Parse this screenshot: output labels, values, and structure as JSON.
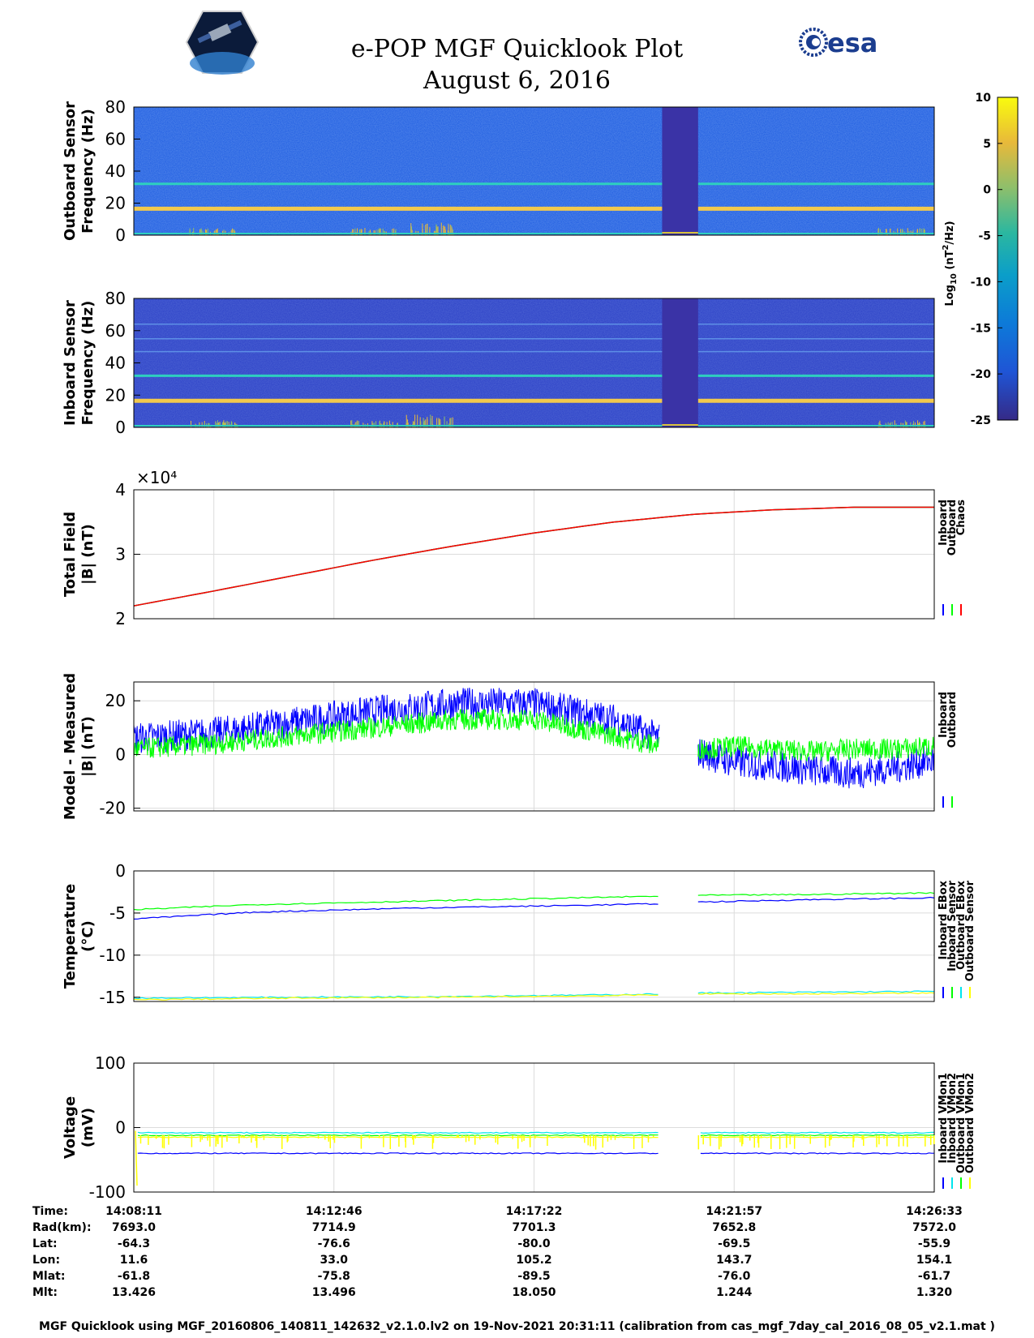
{
  "header": {
    "title_line1": "e-POP MGF Quicklook Plot",
    "title_line2": "August 6, 2016",
    "left_logo": "satellite-mission-logo",
    "right_logo_text": "esa"
  },
  "colorbar": {
    "label": "Log10 (nT2/Hz)",
    "ticks": [
      10,
      5,
      0,
      -5,
      -10,
      -15,
      -20,
      -25
    ],
    "range": [
      -25,
      10
    ]
  },
  "colors": {
    "inboard": "#0000ff",
    "outboard": "#00ff00",
    "chaos": "#ff0000",
    "cyan": "#00e5ee",
    "yellow": "#ffff00"
  },
  "chart_data": [
    {
      "type": "heatmap",
      "id": "outboard-spectrogram",
      "ylabel_line1": "Outboard Sensor",
      "ylabel_line2": "Frequency (Hz)",
      "yticks": [
        "80",
        "60",
        "40",
        "20",
        "0"
      ],
      "ylim": [
        0,
        80
      ],
      "lines_hz": [
        16.5,
        32
      ],
      "gap": [
        0.66,
        0.705
      ]
    },
    {
      "type": "heatmap",
      "id": "inboard-spectrogram",
      "ylabel_line1": "Inboard Sensor",
      "ylabel_line2": "Frequency (Hz)",
      "yticks": [
        "80",
        "60",
        "40",
        "20",
        "0"
      ],
      "ylim": [
        0,
        80
      ],
      "lines_hz": [
        16.5,
        32,
        47,
        55,
        64
      ],
      "gap": [
        0.66,
        0.705
      ]
    },
    {
      "type": "line",
      "id": "total-field",
      "ylabel_line1": "Total Field",
      "ylabel_line2": "|B| (nT)",
      "exponent": "×10⁴",
      "yticks": [
        "4",
        "3",
        "2"
      ],
      "ylim": [
        2,
        4
      ],
      "series": [
        {
          "name": "Inboard",
          "color": "#0000ff",
          "x": [
            0,
            0.1,
            0.2,
            0.3,
            0.4,
            0.5,
            0.6,
            0.7,
            0.8,
            0.9,
            1.0
          ],
          "values": [
            2.2,
            2.43,
            2.67,
            2.91,
            3.13,
            3.33,
            3.5,
            3.62,
            3.69,
            3.73,
            3.73
          ]
        },
        {
          "name": "Outboard",
          "color": "#00ff00",
          "x": [
            0,
            0.1,
            0.2,
            0.3,
            0.4,
            0.5,
            0.6,
            0.7,
            0.8,
            0.9,
            1.0
          ],
          "values": [
            2.2,
            2.43,
            2.67,
            2.91,
            3.13,
            3.33,
            3.5,
            3.62,
            3.69,
            3.73,
            3.73
          ]
        },
        {
          "name": "Chaos",
          "color": "#ff0000",
          "x": [
            0,
            0.1,
            0.2,
            0.3,
            0.4,
            0.5,
            0.6,
            0.7,
            0.8,
            0.9,
            1.0
          ],
          "values": [
            2.2,
            2.43,
            2.67,
            2.91,
            3.13,
            3.33,
            3.5,
            3.62,
            3.69,
            3.73,
            3.73
          ]
        }
      ],
      "legend": [
        "Inboard",
        "Outboard",
        "Chaos"
      ]
    },
    {
      "type": "line",
      "id": "model-minus-measured",
      "ylabel_line1": "Model - Measured",
      "ylabel_line2": "|B| (nT)",
      "yticks": [
        "20",
        "0",
        "-20"
      ],
      "ylim": [
        -21,
        27
      ],
      "series": [
        {
          "name": "Inboard",
          "color": "#0000ff",
          "x": [
            0,
            0.1,
            0.2,
            0.3,
            0.4,
            0.5,
            0.6,
            0.657,
            0.705,
            0.75,
            0.8,
            0.85,
            0.9,
            0.95,
            1.0
          ],
          "values": [
            6,
            8,
            12,
            16,
            19,
            19,
            13,
            6,
            1,
            -3,
            -4,
            -6,
            -7,
            -5,
            -2
          ],
          "amp": 6
        },
        {
          "name": "Outboard",
          "color": "#00ff00",
          "x": [
            0,
            0.1,
            0.2,
            0.3,
            0.4,
            0.5,
            0.6,
            0.657,
            0.705,
            0.75,
            0.8,
            0.85,
            0.9,
            0.95,
            1.0
          ],
          "values": [
            2,
            4,
            7,
            10,
            13,
            13,
            7,
            3,
            2,
            3,
            2,
            1,
            2,
            2,
            3
          ],
          "amp": 4
        }
      ],
      "gap": [
        0.657,
        0.705
      ],
      "legend": [
        "Inboard",
        "Outboard"
      ]
    },
    {
      "type": "line",
      "id": "temperature",
      "ylabel_line1": "Temperature",
      "ylabel_line2": "(°C)",
      "yticks": [
        "0",
        "-5",
        "-10",
        "-15"
      ],
      "ylim": [
        -15.5,
        0
      ],
      "series": [
        {
          "name": "Inboard EBox",
          "color": "#0000ff",
          "x": [
            0,
            0.15,
            0.35,
            0.55,
            0.657,
            0.705,
            0.85,
            1.0
          ],
          "values": [
            -5.7,
            -4.9,
            -4.4,
            -4.1,
            -3.9,
            -3.7,
            -3.4,
            -3.2
          ]
        },
        {
          "name": "Inboard Sensor",
          "color": "#00ff00",
          "x": [
            0,
            0.15,
            0.35,
            0.55,
            0.657,
            0.705,
            0.85,
            1.0
          ],
          "values": [
            -4.6,
            -4.0,
            -3.6,
            -3.2,
            -3.0,
            -2.9,
            -2.8,
            -2.6
          ]
        },
        {
          "name": "Outboard EBox",
          "color": "#00e5ee",
          "x": [
            0,
            0.2,
            0.4,
            0.6,
            0.657,
            0.705,
            0.85,
            1.0
          ],
          "values": [
            -15.1,
            -15.0,
            -14.9,
            -14.7,
            -14.6,
            -14.5,
            -14.4,
            -14.3
          ]
        },
        {
          "name": "Outboard Sensor",
          "color": "#ffff00",
          "x": [
            0,
            0.2,
            0.4,
            0.6,
            0.657,
            0.705,
            0.85,
            1.0
          ],
          "values": [
            -15.3,
            -15.1,
            -15.0,
            -14.8,
            -14.7,
            -14.6,
            -14.6,
            -14.5
          ]
        }
      ],
      "gap": [
        0.657,
        0.705
      ],
      "legend": [
        "Inboard EBox",
        "Inboard Sensor",
        "Outboard EBox",
        "Outboard Sensor"
      ]
    },
    {
      "type": "line",
      "id": "voltage",
      "ylabel_line1": "Voltage",
      "ylabel_line2": "(mV)",
      "yticks": [
        "100",
        "0",
        "-100"
      ],
      "ylim": [
        -100,
        100
      ],
      "series": [
        {
          "name": "Inboard VMon1",
          "color": "#0000ff",
          "x": [
            0.005,
            0.657,
            0.705,
            1.0
          ],
          "values": [
            -40,
            -40,
            -40,
            -40
          ]
        },
        {
          "name": "Inboard VMon2",
          "color": "#00e5ee",
          "x": [
            0.005,
            0.657,
            0.705,
            1.0
          ],
          "values": [
            -8,
            -8,
            -8,
            -8
          ]
        },
        {
          "name": "Outboard VMon1",
          "color": "#00ff00",
          "x": [
            0.005,
            0.657,
            0.705,
            1.0
          ],
          "values": [
            -12,
            -12,
            -12,
            -12
          ]
        },
        {
          "name": "Outboard VMon2",
          "color": "#ffff00",
          "x": [
            0.005,
            0.657,
            0.705,
            1.0
          ],
          "values": [
            -15,
            -15,
            -15,
            -15
          ]
        }
      ],
      "gap": [
        0.657,
        0.705
      ],
      "legend": [
        "Inboard VMon1",
        "Inboard VMon2",
        "Outboard VMon1",
        "Outboard VMon2"
      ]
    }
  ],
  "ephemeris": {
    "row_labels": [
      "Time:",
      "Rad(km):",
      "Lat:",
      "Lon:",
      "Mlat:",
      "Mlt:"
    ],
    "columns": [
      {
        "x_fraction": 0.0,
        "values": [
          "14:08:11",
          "7693.0",
          "-64.3",
          "11.6",
          "-61.8",
          "13.426"
        ]
      },
      {
        "x_fraction": 0.25,
        "values": [
          "14:12:46",
          "7714.9",
          "-76.6",
          "33.0",
          "-75.8",
          "13.496"
        ]
      },
      {
        "x_fraction": 0.5,
        "values": [
          "14:17:22",
          "7701.3",
          "-80.0",
          "105.2",
          "-89.5",
          "18.050"
        ]
      },
      {
        "x_fraction": 0.75,
        "values": [
          "14:21:57",
          "7652.8",
          "-69.5",
          "143.7",
          "-76.0",
          "1.244"
        ]
      },
      {
        "x_fraction": 1.0,
        "values": [
          "14:26:33",
          "7572.0",
          "-55.9",
          "154.1",
          "-61.7",
          "1.320"
        ]
      }
    ]
  },
  "footer": {
    "text": "MGF Quicklook using MGF_20160806_140811_142632_v2.1.0.lv2 on 19-Nov-2021 20:31:11 (calibration from cas_mgf_7day_cal_2016_08_05_v2.1.mat )"
  }
}
